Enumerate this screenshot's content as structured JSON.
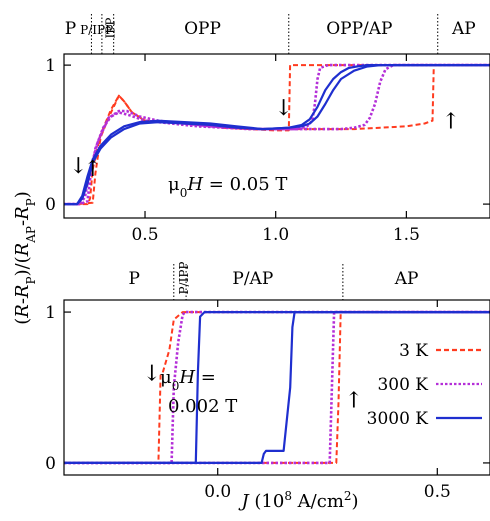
{
  "chart_data": [
    {
      "type": "line",
      "annotation": "μ0H = 0.05 T",
      "xlim": [
        0.19,
        1.82
      ],
      "ylim": [
        -0.1,
        1.08
      ],
      "xticks": [
        {
          "value": 0.5,
          "label": "0.5"
        },
        {
          "value": 1.0,
          "label": "1.0"
        },
        {
          "value": 1.5,
          "label": "1.5"
        }
      ],
      "yticks": [
        {
          "value": 0,
          "label": "0"
        },
        {
          "value": 1,
          "label": "1"
        }
      ],
      "regions": [
        {
          "label": "P",
          "x": 0.215
        },
        {
          "label": "P/IPP",
          "x": 0.315,
          "small": true
        },
        {
          "label": "IPP",
          "x": 0.355,
          "small": true,
          "vertical": true
        },
        {
          "label": "OPP",
          "x": 0.72
        },
        {
          "label": "OPP/AP",
          "x": 1.32
        },
        {
          "label": "AP",
          "x": 1.72
        }
      ],
      "boundaries": [
        0.295,
        0.335,
        0.38,
        1.05,
        1.62
      ],
      "arrows": [
        {
          "dir": "down",
          "x": 0.245,
          "y": 0.28
        },
        {
          "dir": "up",
          "x": 0.3,
          "y": 0.26
        },
        {
          "dir": "down",
          "x": 1.03,
          "y": 0.7
        },
        {
          "dir": "up",
          "x": 1.67,
          "y": 0.6
        }
      ],
      "series": [
        {
          "name": "3 K",
          "color": "#ff3b1f",
          "dash": "5,3",
          "width": 2,
          "x": [
            0.19,
            0.24,
            0.27,
            0.3,
            0.31,
            0.33,
            0.36,
            0.38,
            0.4,
            0.42,
            0.45,
            0.5,
            0.6,
            0.7,
            0.8,
            0.9,
            1.0,
            1.1,
            1.2,
            1.3,
            1.4,
            1.5,
            1.57,
            1.6,
            1.605,
            1.63,
            1.82
          ],
          "y": [
            0,
            0,
            0.005,
            0.01,
            0.22,
            0.48,
            0.62,
            0.7,
            0.78,
            0.74,
            0.66,
            0.6,
            0.59,
            0.58,
            0.55,
            0.54,
            0.54,
            0.54,
            0.54,
            0.54,
            0.55,
            0.56,
            0.58,
            0.6,
            1.0,
            1.0,
            1.0
          ]
        },
        {
          "name": "3 K",
          "color": "#ff3b1f",
          "dash": "5,3",
          "width": 2,
          "x": [
            1.82,
            1.5,
            1.2,
            1.06,
            1.055,
            1.05,
            1.0,
            0.9,
            0.8,
            0.7,
            0.6,
            0.5,
            0.45,
            0.42,
            0.4,
            0.37,
            0.33,
            0.3,
            0.29,
            0.28,
            0.25,
            0.19
          ],
          "y": [
            1.0,
            1.0,
            1.0,
            1.0,
            1.0,
            0.53,
            0.53,
            0.54,
            0.55,
            0.58,
            0.59,
            0.6,
            0.66,
            0.74,
            0.78,
            0.68,
            0.5,
            0.25,
            0.04,
            0.0,
            0.0,
            0.0
          ]
        },
        {
          "name": "300 K",
          "color": "#b42fd8",
          "dash": "2.5,2",
          "width": 2.6,
          "x": [
            0.19,
            0.25,
            0.28,
            0.29,
            0.31,
            0.34,
            0.37,
            0.4,
            0.43,
            0.48,
            0.55,
            0.65,
            0.75,
            0.85,
            0.95,
            1.05,
            1.15,
            1.25,
            1.3,
            1.34,
            1.36,
            1.38,
            1.4,
            1.42,
            1.45,
            1.82
          ],
          "y": [
            0,
            0.0,
            0.02,
            0.18,
            0.4,
            0.55,
            0.63,
            0.67,
            0.67,
            0.63,
            0.6,
            0.58,
            0.56,
            0.55,
            0.54,
            0.54,
            0.54,
            0.54,
            0.55,
            0.57,
            0.62,
            0.72,
            0.88,
            0.97,
            1.0,
            1.0
          ]
        },
        {
          "name": "300 K",
          "color": "#b42fd8",
          "dash": "2.5,2",
          "width": 2.6,
          "x": [
            1.82,
            1.3,
            1.2,
            1.17,
            1.16,
            1.15,
            1.14,
            1.12,
            1.08,
            1.0,
            0.9,
            0.8,
            0.7,
            0.6,
            0.5,
            0.44,
            0.4,
            0.36,
            0.32,
            0.29,
            0.27,
            0.25,
            0.19
          ],
          "y": [
            1.0,
            1.0,
            1.0,
            0.98,
            0.9,
            0.72,
            0.6,
            0.56,
            0.54,
            0.54,
            0.54,
            0.55,
            0.56,
            0.58,
            0.6,
            0.64,
            0.66,
            0.62,
            0.45,
            0.25,
            0.05,
            0.0,
            0.0
          ]
        },
        {
          "name": "3000 K",
          "color": "#1f2fcf",
          "dash": "",
          "width": 2.2,
          "x": [
            0.19,
            0.24,
            0.26,
            0.28,
            0.3,
            0.33,
            0.37,
            0.42,
            0.48,
            0.55,
            0.65,
            0.75,
            0.85,
            0.95,
            1.05,
            1.1,
            1.13,
            1.16,
            1.19,
            1.22,
            1.25,
            1.28,
            1.31,
            1.35,
            1.4,
            1.5,
            1.6,
            1.82
          ],
          "y": [
            0,
            0.0,
            0.06,
            0.2,
            0.32,
            0.42,
            0.5,
            0.56,
            0.59,
            0.6,
            0.59,
            0.58,
            0.56,
            0.54,
            0.55,
            0.57,
            0.61,
            0.7,
            0.82,
            0.9,
            0.95,
            0.98,
            0.99,
            1.0,
            1.0,
            1.0,
            1.0,
            1.0
          ]
        },
        {
          "name": "3000 K",
          "color": "#1f2fcf",
          "dash": "",
          "width": 2.2,
          "x": [
            1.82,
            1.4,
            1.35,
            1.3,
            1.25,
            1.22,
            1.19,
            1.16,
            1.13,
            1.1,
            1.05,
            0.95,
            0.85,
            0.75,
            0.65,
            0.55,
            0.48,
            0.42,
            0.37,
            0.33,
            0.3,
            0.28,
            0.26,
            0.24,
            0.19
          ],
          "y": [
            1.0,
            1.0,
            0.99,
            0.96,
            0.9,
            0.82,
            0.72,
            0.63,
            0.58,
            0.56,
            0.55,
            0.54,
            0.55,
            0.57,
            0.58,
            0.59,
            0.58,
            0.54,
            0.48,
            0.4,
            0.3,
            0.15,
            0.04,
            0.0,
            0.0
          ]
        }
      ]
    },
    {
      "type": "line",
      "annotation": "μ0H = 0.002 T",
      "xlabel": "J (10^8 A/cm^2)",
      "xlim": [
        -0.35,
        0.62
      ],
      "ylim": [
        -0.08,
        1.08
      ],
      "xticks": [
        {
          "value": 0.0,
          "label": "0.0"
        },
        {
          "value": 0.5,
          "label": "0.5"
        }
      ],
      "yticks": [
        {
          "value": 0,
          "label": "0"
        },
        {
          "value": 1,
          "label": "1"
        }
      ],
      "regions": [
        {
          "label": "P",
          "x": -0.19
        },
        {
          "label": "P/IPP",
          "x": -0.085,
          "small": true,
          "vertical": true
        },
        {
          "label": "P/AP",
          "x": 0.08
        },
        {
          "label": "AP",
          "x": 0.43
        }
      ],
      "boundaries": [
        -0.1,
        -0.072,
        0.285
      ],
      "arrows": [
        {
          "dir": "down",
          "x": -0.15,
          "y": 0.6
        },
        {
          "dir": "up",
          "x": 0.31,
          "y": 0.42
        }
      ],
      "series": [
        {
          "name": "3 K",
          "color": "#ff3b1f",
          "dash": "5,3",
          "width": 2,
          "x": [
            -0.35,
            0.27,
            0.275,
            0.28,
            0.62
          ],
          "y": [
            0,
            0,
            0.4,
            1.0,
            1.0
          ]
        },
        {
          "name": "3 K",
          "color": "#ff3b1f",
          "dash": "5,3",
          "width": 2,
          "x": [
            0.62,
            -0.08,
            -0.1,
            -0.11,
            -0.125,
            -0.13,
            -0.135,
            -0.35
          ],
          "y": [
            1.0,
            1.0,
            0.95,
            0.75,
            0.6,
            0.58,
            0.0,
            0.0
          ]
        },
        {
          "name": "300 K",
          "color": "#b42fd8",
          "dash": "2.5,2",
          "width": 2.6,
          "x": [
            -0.35,
            0.255,
            0.26,
            0.265,
            0.62
          ],
          "y": [
            0,
            0,
            0.5,
            1.0,
            1.0
          ]
        },
        {
          "name": "300 K",
          "color": "#b42fd8",
          "dash": "2.5,2",
          "width": 2.6,
          "x": [
            0.62,
            -0.075,
            -0.08,
            -0.09,
            -0.1,
            -0.105,
            -0.35
          ],
          "y": [
            1.0,
            1.0,
            0.98,
            0.8,
            0.5,
            0.0,
            0.0
          ]
        },
        {
          "name": "3000 K",
          "color": "#1f2fcf",
          "dash": "",
          "width": 2.2,
          "x": [
            -0.35,
            0.1,
            0.105,
            0.11,
            0.13,
            0.15,
            0.165,
            0.17,
            0.175,
            0.62
          ],
          "y": [
            0,
            0,
            0.06,
            0.08,
            0.08,
            0.08,
            0.5,
            0.9,
            1.0,
            1.0
          ]
        },
        {
          "name": "3000 K",
          "color": "#1f2fcf",
          "dash": "",
          "width": 2.2,
          "x": [
            0.62,
            -0.03,
            -0.04,
            -0.045,
            -0.05,
            -0.35
          ],
          "y": [
            1.0,
            1.0,
            0.97,
            0.6,
            0.0,
            0.0
          ]
        }
      ],
      "legend": [
        {
          "label": "3 K",
          "color": "#ff3b1f",
          "dash": "5,3"
        },
        {
          "label": "300 K",
          "color": "#b42fd8",
          "dash": "2.5,2"
        },
        {
          "label": "3000 K",
          "color": "#1f2fcf",
          "dash": ""
        }
      ]
    }
  ],
  "ylabel": "(R-RP)/(RAP-RP)"
}
